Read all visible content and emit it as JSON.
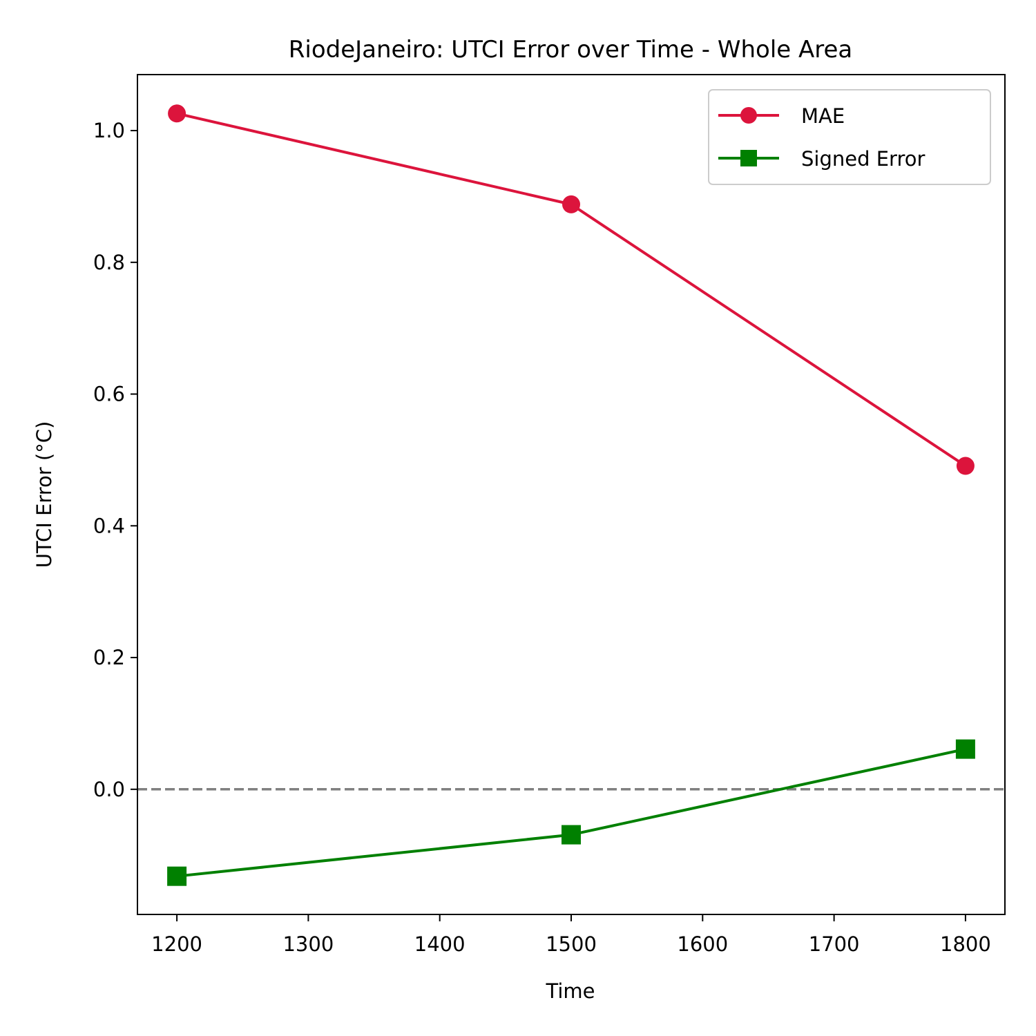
{
  "chart_data": {
    "type": "line",
    "title": "RiodeJaneiro: UTCI Error over Time - Whole Area",
    "xlabel": "Time",
    "ylabel": "UTCI Error (°C)",
    "xlim": [
      1170,
      1830
    ],
    "ylim": [
      -0.19,
      1.085
    ],
    "xticks": [
      1200,
      1300,
      1400,
      1500,
      1600,
      1700,
      1800
    ],
    "xtick_labels": [
      "1200",
      "1300",
      "1400",
      "1500",
      "1600",
      "1700",
      "1800"
    ],
    "yticks": [
      0.0,
      0.2,
      0.4,
      0.6,
      0.8,
      1.0
    ],
    "ytick_labels": [
      "0.0",
      "0.2",
      "0.4",
      "0.6",
      "0.8",
      "1.0"
    ],
    "grid": false,
    "legend_position": "top-right",
    "reference_line": {
      "y": 0.0,
      "style": "dashed",
      "color": "#808080"
    },
    "x": [
      1200,
      1500,
      1800
    ],
    "series": [
      {
        "name": "MAE",
        "values": [
          1.026,
          0.888,
          0.491
        ],
        "color": "#dc143c",
        "marker": "circle"
      },
      {
        "name": "Signed Error",
        "values": [
          -0.132,
          -0.069,
          0.061
        ],
        "color": "#008000",
        "marker": "square"
      }
    ]
  }
}
